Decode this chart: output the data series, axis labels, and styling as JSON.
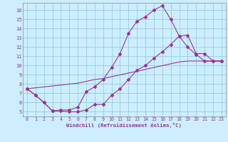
{
  "xlabel": "Windchill (Refroidissement éolien,°C)",
  "bg_color": "#cceeff",
  "grid_color": "#99ccdd",
  "line_color": "#993399",
  "xlim": [
    -0.5,
    23.5
  ],
  "ylim": [
    4.5,
    16.8
  ],
  "xticks": [
    0,
    1,
    2,
    3,
    4,
    5,
    6,
    7,
    8,
    9,
    10,
    11,
    12,
    13,
    14,
    15,
    16,
    17,
    18,
    19,
    20,
    21,
    22,
    23
  ],
  "yticks": [
    5,
    6,
    7,
    8,
    9,
    10,
    11,
    12,
    13,
    14,
    15,
    16
  ],
  "line1_x": [
    0,
    1,
    2,
    3,
    4,
    5,
    6,
    7,
    8,
    9,
    10,
    11,
    12,
    13,
    14,
    15,
    16,
    17,
    18,
    19,
    20,
    21,
    22,
    23
  ],
  "line1_y": [
    7.5,
    6.8,
    6.0,
    5.1,
    5.2,
    5.2,
    5.5,
    7.2,
    7.7,
    8.5,
    9.8,
    11.3,
    13.5,
    14.8,
    15.3,
    16.0,
    16.5,
    15.0,
    13.2,
    12.0,
    11.2,
    10.5,
    10.5,
    10.5
  ],
  "line2_x": [
    0,
    1,
    2,
    3,
    4,
    5,
    6,
    7,
    8,
    9,
    10,
    11,
    12,
    13,
    14,
    15,
    16,
    17,
    18,
    19,
    20,
    21,
    22,
    23
  ],
  "line2_y": [
    7.5,
    6.8,
    6.0,
    5.1,
    5.1,
    5.0,
    5.0,
    5.2,
    5.8,
    5.8,
    6.8,
    7.5,
    8.5,
    9.5,
    10.0,
    10.8,
    11.5,
    12.3,
    13.2,
    13.3,
    11.3,
    11.3,
    10.5,
    10.5
  ],
  "line3_x": [
    0,
    1,
    2,
    3,
    4,
    5,
    6,
    7,
    8,
    9,
    10,
    11,
    12,
    13,
    14,
    15,
    16,
    17,
    18,
    19,
    20,
    21,
    22,
    23
  ],
  "line3_y": [
    7.5,
    7.6,
    7.7,
    7.8,
    7.9,
    8.0,
    8.1,
    8.3,
    8.5,
    8.6,
    8.8,
    9.0,
    9.2,
    9.4,
    9.6,
    9.8,
    10.0,
    10.2,
    10.4,
    10.5,
    10.5,
    10.5,
    10.5,
    10.5
  ]
}
